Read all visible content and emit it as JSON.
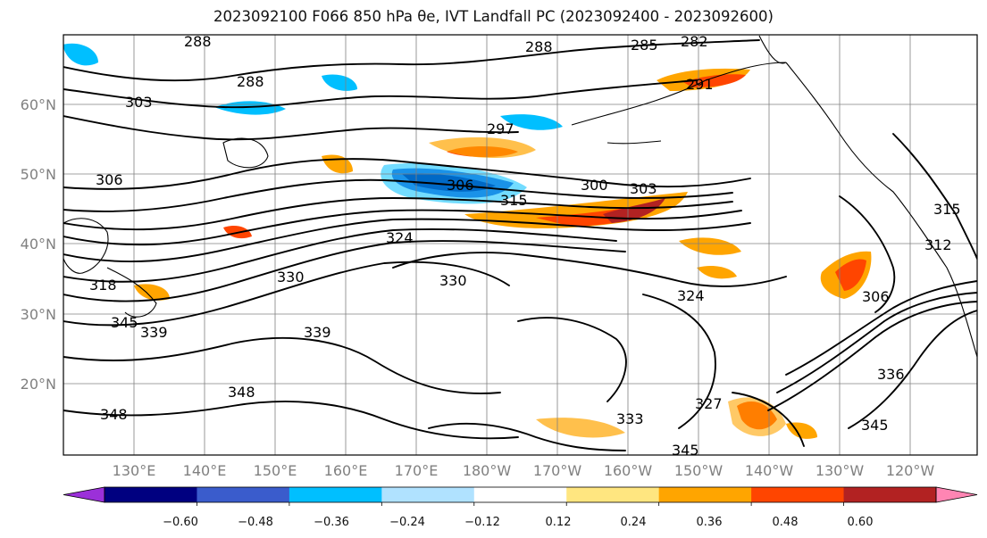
{
  "title": "2023092100 F066 850 hPa θe, IVT Landfall PC (2023092400 - 2023092600)",
  "map": {
    "lat_ticks": [
      "20°N",
      "30°N",
      "40°N",
      "50°N",
      "60°N"
    ],
    "lon_ticks": [
      "130°E",
      "140°E",
      "150°E",
      "160°E",
      "170°E",
      "180°W",
      "170°W",
      "160°W",
      "150°W",
      "140°W",
      "130°W",
      "120°W"
    ],
    "contour_labels": [
      "288",
      "285",
      "282",
      "288",
      "288",
      "303",
      "306",
      "306",
      "300",
      "303",
      "315",
      "297",
      "291",
      "324",
      "330",
      "339",
      "345",
      "339",
      "348",
      "348",
      "330",
      "333",
      "345",
      "336",
      "345",
      "306",
      "324",
      "315",
      "312",
      "327",
      "318"
    ],
    "colors": {
      "frame": "#000000",
      "grid": "#808080",
      "contour": "#000000"
    }
  },
  "colorbar": {
    "ticks": [
      "−0.60",
      "−0.48",
      "−0.36",
      "−0.24",
      "−0.12",
      "0.12",
      "0.24",
      "0.36",
      "0.48",
      "0.60"
    ],
    "colors": [
      "#9b30d9",
      "#000080",
      "#3a5ccc",
      "#00bfff",
      "#b0e2ff",
      "#ffffff",
      "#ffe680",
      "#ffa500",
      "#ff4500",
      "#b22222",
      "#ff85b3"
    ]
  }
}
